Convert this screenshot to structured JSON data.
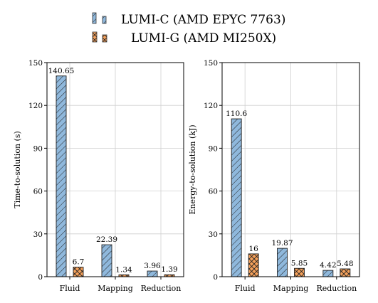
{
  "colors": {
    "cpu": "#8fb8dc",
    "gpu": "#f4a05a",
    "grid": "#cfcfcf",
    "axis": "#000000"
  },
  "legend": {
    "placement": "top-center",
    "items": [
      {
        "label": "LUMI-C (AMD EPYC 7763)",
        "pattern": "hatch",
        "color": "#8fb8dc"
      },
      {
        "label": "LUMI-G (AMD MI250X)",
        "pattern": "crosshatch",
        "color": "#f4a05a"
      }
    ]
  },
  "chart_data": [
    {
      "type": "bar",
      "ylabel": "Time-to-solution (s)",
      "ylim": [
        0,
        150
      ],
      "yticks": [
        0,
        30,
        60,
        90,
        120,
        150
      ],
      "grid": true,
      "categories": [
        "Fluid",
        "Mapping",
        "Reduction"
      ],
      "series": [
        {
          "name": "LUMI-C (AMD EPYC 7763)",
          "values": [
            140.65,
            22.39,
            3.96
          ],
          "labels": [
            "140.65",
            "22.39",
            "3.96"
          ]
        },
        {
          "name": "LUMI-G (AMD MI250X)",
          "values": [
            6.7,
            1.34,
            1.39
          ],
          "labels": [
            "6.7",
            "1.34",
            "1.39"
          ]
        }
      ]
    },
    {
      "type": "bar",
      "ylabel": "Energy-to-solution (kJ)",
      "ylim": [
        0,
        150
      ],
      "yticks": [
        0,
        30,
        60,
        90,
        120,
        150
      ],
      "grid": true,
      "categories": [
        "Fluid",
        "Mapping",
        "Reduction"
      ],
      "series": [
        {
          "name": "LUMI-C (AMD EPYC 7763)",
          "values": [
            110.6,
            19.87,
            4.42
          ],
          "labels": [
            "110.6",
            "19.87",
            "4.42"
          ]
        },
        {
          "name": "LUMI-G (AMD MI250X)",
          "values": [
            16,
            5.85,
            5.48
          ],
          "labels": [
            "16",
            "5.85",
            "5.48"
          ]
        }
      ]
    }
  ]
}
